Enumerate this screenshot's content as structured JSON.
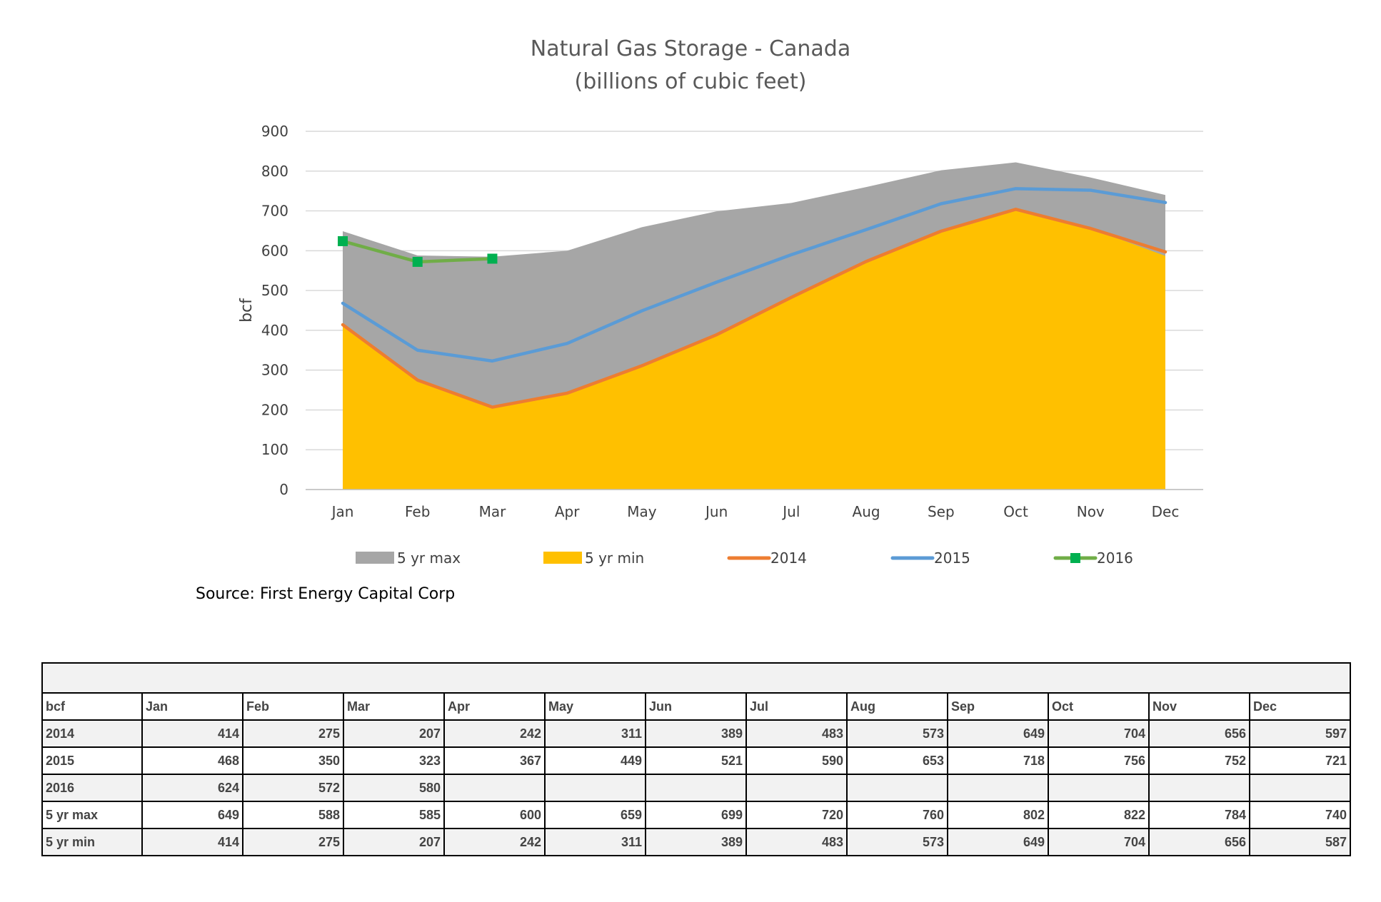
{
  "chart_data": {
    "type": "area",
    "title": [
      "Natural Gas Storage - Canada",
      "(billions of cubic feet)"
    ],
    "ylabel": "bcf",
    "xlabel": "",
    "ylim": [
      0,
      900
    ],
    "yticks": [
      0,
      100,
      200,
      300,
      400,
      500,
      600,
      700,
      800,
      900
    ],
    "grid": true,
    "legend_placement": "bottom",
    "categories": [
      "Jan",
      "Feb",
      "Mar",
      "Apr",
      "May",
      "Jun",
      "Jul",
      "Aug",
      "Sep",
      "Oct",
      "Nov",
      "Dec"
    ],
    "series": [
      {
        "name": "5 yr max",
        "kind": "area",
        "color": "#a6a6a6",
        "values": [
          649,
          588,
          585,
          600,
          659,
          699,
          720,
          760,
          802,
          822,
          784,
          740
        ]
      },
      {
        "name": "5 yr min",
        "kind": "area",
        "color": "#ffc000",
        "values": [
          414,
          275,
          207,
          242,
          311,
          389,
          483,
          573,
          649,
          704,
          656,
          587
        ]
      },
      {
        "name": "2014",
        "kind": "line",
        "color": "#ed7d31",
        "values": [
          414,
          275,
          207,
          242,
          311,
          389,
          483,
          573,
          649,
          704,
          656,
          597
        ]
      },
      {
        "name": "2015",
        "kind": "line",
        "color": "#5b9bd5",
        "values": [
          468,
          350,
          323,
          367,
          449,
          521,
          590,
          653,
          718,
          756,
          752,
          721
        ]
      },
      {
        "name": "2016",
        "kind": "line-marker",
        "color": "#70ad47",
        "marker_color": "#00b050",
        "values": [
          624,
          572,
          580,
          null,
          null,
          null,
          null,
          null,
          null,
          null,
          null,
          null
        ]
      }
    ]
  },
  "source": "Source: First Energy Capital Corp",
  "table": {
    "corner": "bcf",
    "columns": [
      "Jan",
      "Feb",
      "Mar",
      "Apr",
      "May",
      "Jun",
      "Jul",
      "Aug",
      "Sep",
      "Oct",
      "Nov",
      "Dec"
    ],
    "rows": [
      {
        "label": "2014",
        "values": [
          "414",
          "275",
          "207",
          "242",
          "311",
          "389",
          "483",
          "573",
          "649",
          "704",
          "656",
          "597"
        ]
      },
      {
        "label": "2015",
        "values": [
          "468",
          "350",
          "323",
          "367",
          "449",
          "521",
          "590",
          "653",
          "718",
          "756",
          "752",
          "721"
        ]
      },
      {
        "label": "2016",
        "values": [
          "624",
          "572",
          "580",
          "",
          "",
          "",
          "",
          "",
          "",
          "",
          "",
          ""
        ]
      },
      {
        "label": "5 yr max",
        "values": [
          "649",
          "588",
          "585",
          "600",
          "659",
          "699",
          "720",
          "760",
          "802",
          "822",
          "784",
          "740"
        ]
      },
      {
        "label": "5 yr min",
        "values": [
          "414",
          "275",
          "207",
          "242",
          "311",
          "389",
          "483",
          "573",
          "649",
          "704",
          "656",
          "587"
        ]
      }
    ]
  }
}
